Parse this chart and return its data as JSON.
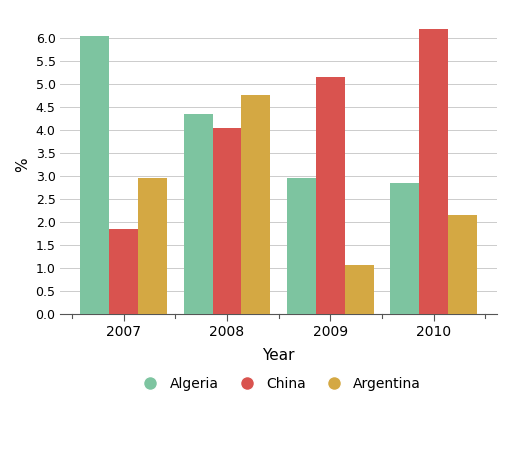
{
  "years": [
    "2007",
    "2008",
    "2009",
    "2010"
  ],
  "algeria": [
    6.05,
    4.35,
    2.95,
    2.85
  ],
  "china": [
    1.85,
    4.05,
    5.15,
    6.2
  ],
  "argentina": [
    2.95,
    4.75,
    1.05,
    2.15
  ],
  "algeria_color": "#7dc4a0",
  "china_color": "#d9534f",
  "argentina_color": "#d4a843",
  "ylabel": "%",
  "xlabel": "Year",
  "ylim": [
    0,
    6.5
  ],
  "yticks": [
    0.0,
    0.5,
    1.0,
    1.5,
    2.0,
    2.5,
    3.0,
    3.5,
    4.0,
    4.5,
    5.0,
    5.5,
    6.0
  ],
  "legend_labels": [
    "Algeria",
    "China",
    "Argentina"
  ],
  "background_color": "#ffffff",
  "bar_width": 0.28,
  "grid_color": "#cccccc",
  "spine_color": "#555555"
}
